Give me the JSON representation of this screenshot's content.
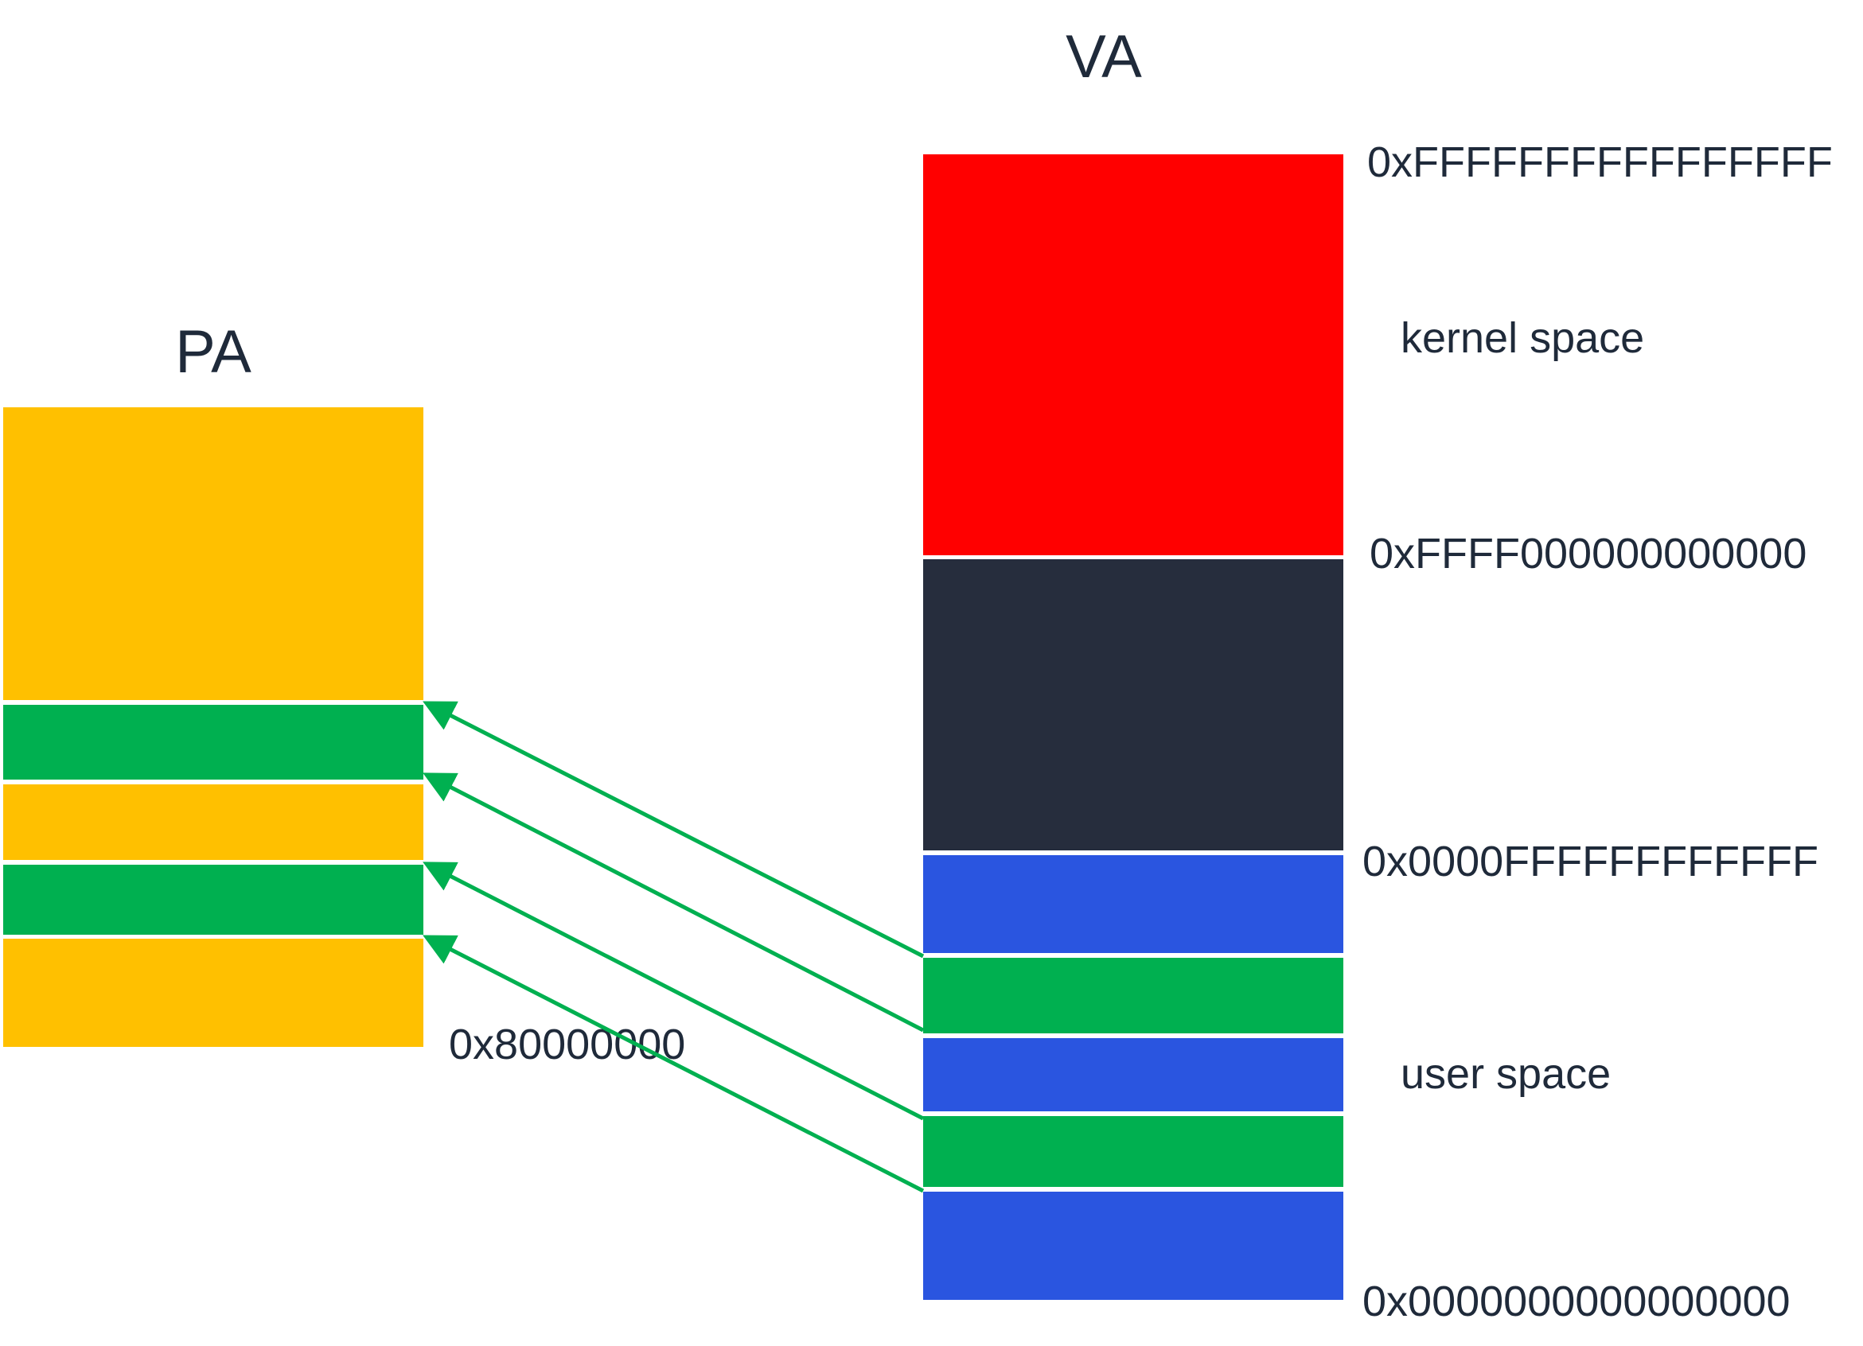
{
  "pa": {
    "title": "PA",
    "address": "0x80000000"
  },
  "va": {
    "title": "VA",
    "addresses": {
      "top": "0xFFFFFFFFFFFFFFFF",
      "kernel_start": "0xFFFF000000000000",
      "user_end": "0x0000FFFFFFFFFFFF",
      "bottom": "0x0000000000000000"
    },
    "regions": {
      "kernel": "kernel space",
      "user": "user space"
    }
  },
  "colors": {
    "pa_free": "#FFC000",
    "mapped": "#00B050",
    "kernel": "#FF0000",
    "non_canonical": "#262D3D",
    "user": "#2A55E0",
    "arrow": "#00B050",
    "text": "#1F2A3A"
  }
}
